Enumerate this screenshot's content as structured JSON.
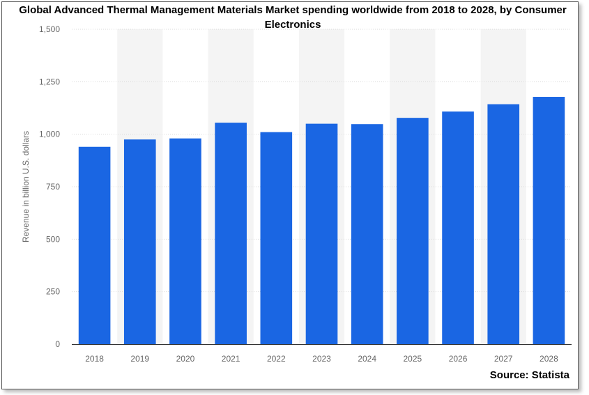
{
  "chart_data": {
    "type": "bar",
    "title": "Global Advanced Thermal Management Materials Market spending worldwide from 2018 to 2028, by Consumer Electronics",
    "xlabel": "",
    "ylabel": "Revenue in billion U.S. dollars",
    "categories": [
      "2018",
      "2019",
      "2020",
      "2021",
      "2022",
      "2023",
      "2024",
      "2025",
      "2026",
      "2027",
      "2028"
    ],
    "values": [
      940,
      975,
      980,
      1055,
      1010,
      1050,
      1048,
      1078,
      1108,
      1143,
      1178
    ],
    "ylim": [
      0,
      1500
    ],
    "yticks": [
      0,
      250,
      500,
      750,
      1000,
      1250,
      1500
    ],
    "ytick_labels": [
      "0",
      "250",
      "500",
      "750",
      "1,000",
      "1,250",
      "1,500"
    ],
    "grid": true,
    "bar_color": "#1a66e3",
    "band_color": "#f4f4f4",
    "source": "Source: Statista"
  }
}
